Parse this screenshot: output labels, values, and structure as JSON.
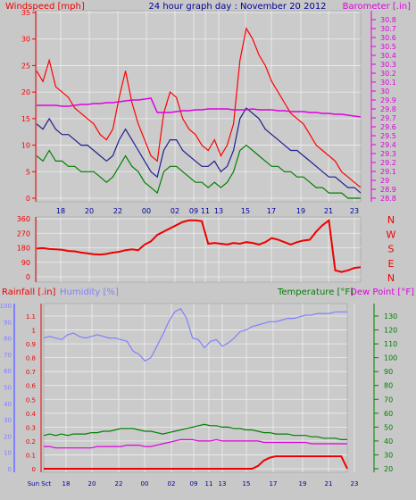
{
  "header": {
    "windspeed": "Windspeed [mph]",
    "title": "24 hour graph day : November 20 2012",
    "barometer": "Barometer [.in]"
  },
  "colors": {
    "background": "#c8c8c8",
    "plot": "#cbcbcb",
    "grid": "#eeeeee",
    "gust": "#ff0000",
    "average": "#1f1f8f",
    "calm": "#008000",
    "barometer": "#e000e0",
    "direction": "#ee0000",
    "rain": "#ee0000",
    "humidity": "#8080ff",
    "temperature": "#008000",
    "dewpoint": "#e000e0",
    "blue_text": "#000099"
  },
  "chart_data": [
    {
      "type": "line",
      "panel": "wind",
      "x_ticks": [
        "18",
        "20",
        "22",
        "00",
        "02",
        "09",
        "11",
        "13",
        "15",
        "17",
        "19",
        "21",
        "23"
      ],
      "ylabel_left": "Windspeed [mph]",
      "ylabel_right": "Barometer [.in]",
      "ylim_left": [
        0,
        35
      ],
      "ylim_right": [
        28.8,
        30.8
      ],
      "y_ticks_left": [
        "35",
        "30",
        "25",
        "20",
        "15",
        "10",
        "5",
        "0"
      ],
      "y_ticks_right": [
        "30.8",
        "30.7",
        "30.6",
        "30.5",
        "30.4",
        "30.3",
        "30.2",
        "30.1",
        "30",
        "29.9",
        "29.8",
        "29.7",
        "29.6",
        "29.5",
        "29.4",
        "29.3",
        "29.2",
        "29.1",
        "29",
        "28.9",
        "28.8"
      ],
      "grid": true,
      "series": [
        {
          "name": "gust",
          "values": [
            24,
            22,
            26,
            21,
            20,
            19,
            17,
            16,
            15,
            14,
            12,
            11,
            13,
            19,
            24,
            18,
            14,
            11,
            8,
            7,
            16,
            20,
            19,
            15,
            13,
            12,
            10,
            9,
            11,
            8,
            10,
            14,
            26,
            32,
            30,
            27,
            25,
            22,
            20,
            18,
            16,
            15,
            14,
            12,
            10,
            9,
            8,
            7,
            5,
            4,
            3,
            2
          ]
        },
        {
          "name": "average",
          "values": [
            14,
            13,
            15,
            13,
            12,
            12,
            11,
            10,
            10,
            9,
            8,
            7,
            8,
            11,
            13,
            11,
            9,
            7,
            5,
            4,
            9,
            11,
            11,
            9,
            8,
            7,
            6,
            6,
            7,
            5,
            6,
            9,
            15,
            17,
            16,
            15,
            13,
            12,
            11,
            10,
            9,
            9,
            8,
            7,
            6,
            5,
            4,
            4,
            3,
            2,
            2,
            1
          ]
        },
        {
          "name": "calm",
          "values": [
            8,
            7,
            9,
            7,
            7,
            6,
            6,
            5,
            5,
            5,
            4,
            3,
            4,
            6,
            8,
            6,
            5,
            3,
            2,
            1,
            5,
            6,
            6,
            5,
            4,
            3,
            3,
            2,
            3,
            2,
            3,
            5,
            9,
            10,
            9,
            8,
            7,
            6,
            6,
            5,
            5,
            4,
            4,
            3,
            2,
            2,
            1,
            1,
            1,
            0,
            0,
            0
          ]
        },
        {
          "name": "barometer",
          "values": [
            29.84,
            29.84,
            29.84,
            29.84,
            29.83,
            29.83,
            29.84,
            29.85,
            29.85,
            29.86,
            29.86,
            29.87,
            29.87,
            29.88,
            29.89,
            29.9,
            29.9,
            29.91,
            29.92,
            29.76,
            29.76,
            29.76,
            29.77,
            29.78,
            29.78,
            29.79,
            29.79,
            29.8,
            29.8,
            29.8,
            29.8,
            29.79,
            29.79,
            29.79,
            29.8,
            29.79,
            29.79,
            29.79,
            29.78,
            29.78,
            29.77,
            29.77,
            29.77,
            29.76,
            29.76,
            29.75,
            29.75,
            29.74,
            29.74,
            29.73,
            29.72,
            29.71
          ]
        }
      ]
    },
    {
      "type": "line",
      "panel": "wind direction",
      "ylim": [
        0,
        360
      ],
      "y_ticks": [
        "360",
        "270",
        "180",
        "90",
        "0"
      ],
      "compass_labels": [
        "N",
        "W",
        "S",
        "E",
        "N"
      ],
      "grid": true,
      "series": [
        {
          "name": "direction",
          "values": [
            175,
            178,
            172,
            170,
            168,
            160,
            158,
            150,
            145,
            140,
            138,
            142,
            150,
            155,
            165,
            170,
            165,
            200,
            220,
            260,
            280,
            300,
            320,
            340,
            350,
            350,
            345,
            205,
            210,
            205,
            200,
            210,
            205,
            215,
            210,
            200,
            215,
            240,
            230,
            215,
            200,
            215,
            225,
            230,
            280,
            320,
            350,
            40,
            30,
            40,
            55,
            60
          ]
        }
      ]
    },
    {
      "type": "line",
      "panel": "rain, humidity, temperature",
      "x_ticks": [
        "Sun Sct",
        "18",
        "20",
        "22",
        "00",
        "02",
        "09",
        "11",
        "13",
        "15",
        "17",
        "19",
        "21",
        "23"
      ],
      "ylim_rain": [
        0,
        1.1
      ],
      "ylim_humidity": [
        0,
        100
      ],
      "ylim_temperature": [
        20,
        130
      ],
      "rain_ticks": [
        "1.1",
        "1",
        "0.9",
        "0.8",
        "0.7",
        "0.6",
        "0.5",
        "0.4",
        "0.3",
        "0.2",
        "0.1",
        "0"
      ],
      "humidity_ticks": [
        "100",
        "90",
        "80",
        "70",
        "60",
        "50",
        "40",
        "30",
        "20",
        "10",
        "0"
      ],
      "temperature_ticks": [
        "130",
        "120",
        "110",
        "100",
        "90",
        "80",
        "70",
        "60",
        "50",
        "40",
        "30",
        "20"
      ],
      "grid": true,
      "series": [
        {
          "name": "Rainfall [.in]",
          "values": [
            0,
            0,
            0,
            0,
            0,
            0,
            0,
            0,
            0,
            0,
            0,
            0,
            0,
            0,
            0,
            0,
            0,
            0,
            0,
            0,
            0,
            0,
            0,
            0,
            0,
            0,
            0,
            0,
            0,
            0,
            0,
            0,
            0,
            0,
            0,
            0,
            0.02,
            0.06,
            0.08,
            0.09,
            0.09,
            0.09,
            0.09,
            0.09,
            0.09,
            0.09,
            0.09,
            0.09,
            0.09,
            0.09,
            0.09,
            0
          ]
        },
        {
          "name": "Humidity [%]",
          "values": [
            80,
            81,
            80,
            79,
            82,
            83,
            81,
            80,
            81,
            82,
            81,
            80,
            80,
            79,
            78,
            72,
            70,
            66,
            68,
            75,
            82,
            90,
            96,
            98,
            92,
            80,
            79,
            74,
            78,
            79,
            75,
            77,
            80,
            84,
            85,
            87,
            88,
            89,
            90,
            90,
            91,
            92,
            92,
            93,
            94,
            94,
            95,
            95,
            95,
            96,
            96,
            96
          ]
        },
        {
          "name": "Temperature [°F]",
          "values": [
            44,
            45,
            44,
            45,
            44,
            45,
            45,
            45,
            46,
            46,
            47,
            47,
            48,
            49,
            49,
            49,
            48,
            47,
            47,
            46,
            45,
            46,
            47,
            48,
            49,
            50,
            51,
            52,
            51,
            51,
            50,
            50,
            49,
            49,
            48,
            48,
            47,
            46,
            46,
            45,
            45,
            45,
            44,
            44,
            44,
            43,
            43,
            42,
            42,
            42,
            41,
            41
          ]
        },
        {
          "name": "Dew Point [°F]",
          "values": [
            36,
            36,
            35,
            35,
            35,
            35,
            35,
            35,
            35,
            36,
            36,
            36,
            36,
            36,
            37,
            37,
            37,
            36,
            36,
            37,
            38,
            39,
            40,
            41,
            41,
            41,
            40,
            40,
            40,
            41,
            40,
            40,
            40,
            40,
            40,
            40,
            40,
            39,
            39,
            39,
            39,
            39,
            39,
            39,
            39,
            38,
            38,
            38,
            38,
            38,
            38,
            38
          ]
        }
      ],
      "labels": {
        "rain": "Rainfall [.in]",
        "humidity": "Humidity [%]",
        "temperature": "Temperature [°F]",
        "dewpoint": "Dew Point [°F]"
      }
    }
  ]
}
